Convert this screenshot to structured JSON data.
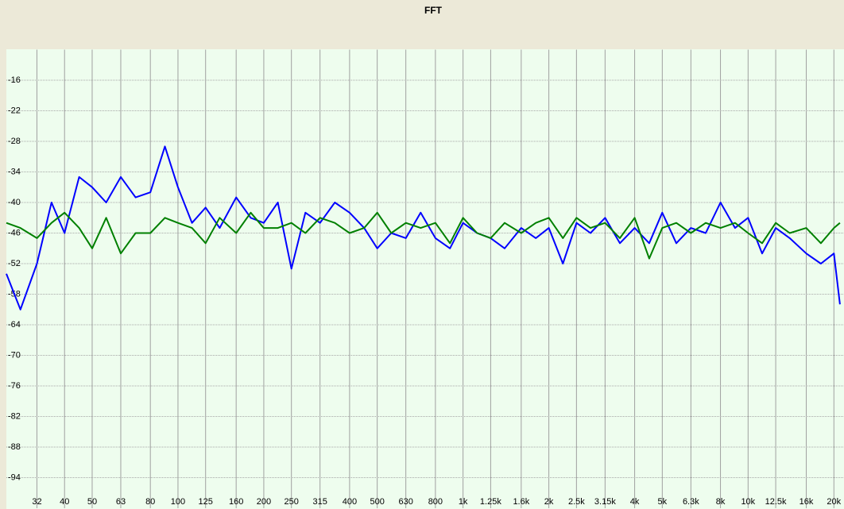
{
  "chart_data": {
    "type": "line",
    "title": "FFT",
    "log_x": true,
    "grid": true,
    "xlim": [
      25,
      21700
    ],
    "ylim": [
      -100,
      -10
    ],
    "xticks": [
      32,
      40,
      50,
      63,
      80,
      100,
      125,
      160,
      200,
      250,
      315,
      400,
      500,
      630,
      800,
      {
        "value": 1000,
        "label": "1k"
      },
      {
        "value": 1250,
        "label": "1.25k"
      },
      {
        "value": 1600,
        "label": "1.6k"
      },
      {
        "value": 2000,
        "label": "2k"
      },
      {
        "value": 2500,
        "label": "2.5k"
      },
      {
        "value": 3150,
        "label": "3.15k"
      },
      {
        "value": 4000,
        "label": "4k"
      },
      {
        "value": 5000,
        "label": "5k"
      },
      {
        "value": 6300,
        "label": "6.3k"
      },
      {
        "value": 8000,
        "label": "8k"
      },
      {
        "value": 10000,
        "label": "10k"
      },
      {
        "value": 12500,
        "label": "12.5k"
      },
      {
        "value": 16000,
        "label": "16k"
      },
      {
        "value": 20000,
        "label": "20k"
      }
    ],
    "yticks": [
      -16,
      -22,
      -28,
      -34,
      -40,
      -46,
      -52,
      -58,
      -64,
      -70,
      -76,
      -82,
      -88,
      -94
    ],
    "x": [
      25,
      28,
      32,
      36,
      40,
      45,
      50,
      56,
      63,
      71,
      80,
      90,
      100,
      112,
      125,
      140,
      160,
      180,
      200,
      224,
      250,
      280,
      315,
      355,
      400,
      450,
      500,
      560,
      630,
      710,
      800,
      900,
      1000,
      1120,
      1250,
      1400,
      1600,
      1800,
      2000,
      2240,
      2500,
      2800,
      3150,
      3550,
      4000,
      4500,
      5000,
      5600,
      6300,
      7100,
      8000,
      9000,
      10000,
      11200,
      12500,
      14000,
      16000,
      18000,
      20000,
      21000
    ],
    "series": [
      {
        "color": "#0000ff",
        "values": [
          -54,
          -61,
          -52,
          -40,
          -46,
          -35,
          -37,
          -40,
          -35,
          -39,
          -38,
          -29,
          -37,
          -44,
          -41,
          -45,
          -39,
          -43,
          -44,
          -40,
          -53,
          -42,
          -44,
          -40,
          -42,
          -45,
          -49,
          -46,
          -47,
          -42,
          -47,
          -49,
          -44,
          -46,
          -47,
          -49,
          -45,
          -47,
          -45,
          -52,
          -44,
          -46,
          -43,
          -48,
          -45,
          -48,
          -42,
          -48,
          -45,
          -46,
          -40,
          -45,
          -43,
          -50,
          -45,
          -47,
          -50,
          -52,
          -50,
          -60
        ]
      },
      {
        "color": "#008000",
        "values": [
          -44,
          -45,
          -47,
          -44,
          -42,
          -45,
          -49,
          -43,
          -50,
          -46,
          -46,
          -43,
          -44,
          -45,
          -48,
          -43,
          -46,
          -42,
          -45,
          -45,
          -44,
          -46,
          -43,
          -44,
          -46,
          -45,
          -42,
          -46,
          -44,
          -45,
          -44,
          -48,
          -43,
          -46,
          -47,
          -44,
          -46,
          -44,
          -43,
          -47,
          -43,
          -45,
          -44,
          -47,
          -43,
          -51,
          -45,
          -44,
          -46,
          -44,
          -45,
          -44,
          -46,
          -48,
          -44,
          -46,
          -45,
          -48,
          -45,
          -44
        ]
      }
    ]
  }
}
